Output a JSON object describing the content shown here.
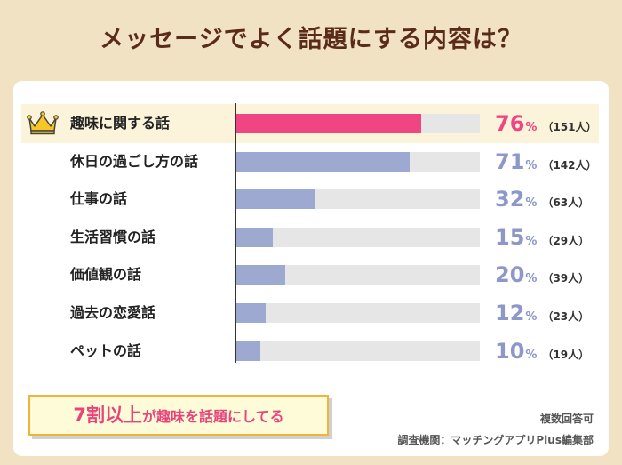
{
  "title": "メッセージでよく話題にする内容は？",
  "chart_data": {
    "type": "bar",
    "orientation": "horizontal",
    "categories": [
      "趣味に関する話",
      "休日の過ごし方の話",
      "仕事の話",
      "生活習慣の話",
      "価値観の話",
      "過去の恋愛話",
      "ペットの話"
    ],
    "values": [
      76,
      71,
      32,
      15,
      20,
      12,
      10
    ],
    "value_labels": [
      "76",
      "71",
      "32",
      "15",
      "20",
      "12",
      "10"
    ],
    "unit": "%",
    "counts": [
      "（151人）",
      "（142人）",
      "（63人）",
      "（29人）",
      "（39人）",
      "（23人）",
      "（19人）"
    ],
    "xlim": [
      0,
      100
    ],
    "top_index": 0,
    "colors": {
      "top": "#ef4683",
      "normal": "#9ea9d2",
      "track": "#e6e6e6",
      "top_text": "#ef4683",
      "normal_text": "#8d97c9"
    }
  },
  "callout": {
    "big": "7割以上",
    "small": "が趣味を話題にしてる"
  },
  "notes": {
    "answer_type": "複数回答可",
    "source": "調査機関：マッチングアプリPlus編集部"
  },
  "icons": {
    "top_marker": "crown-icon"
  }
}
